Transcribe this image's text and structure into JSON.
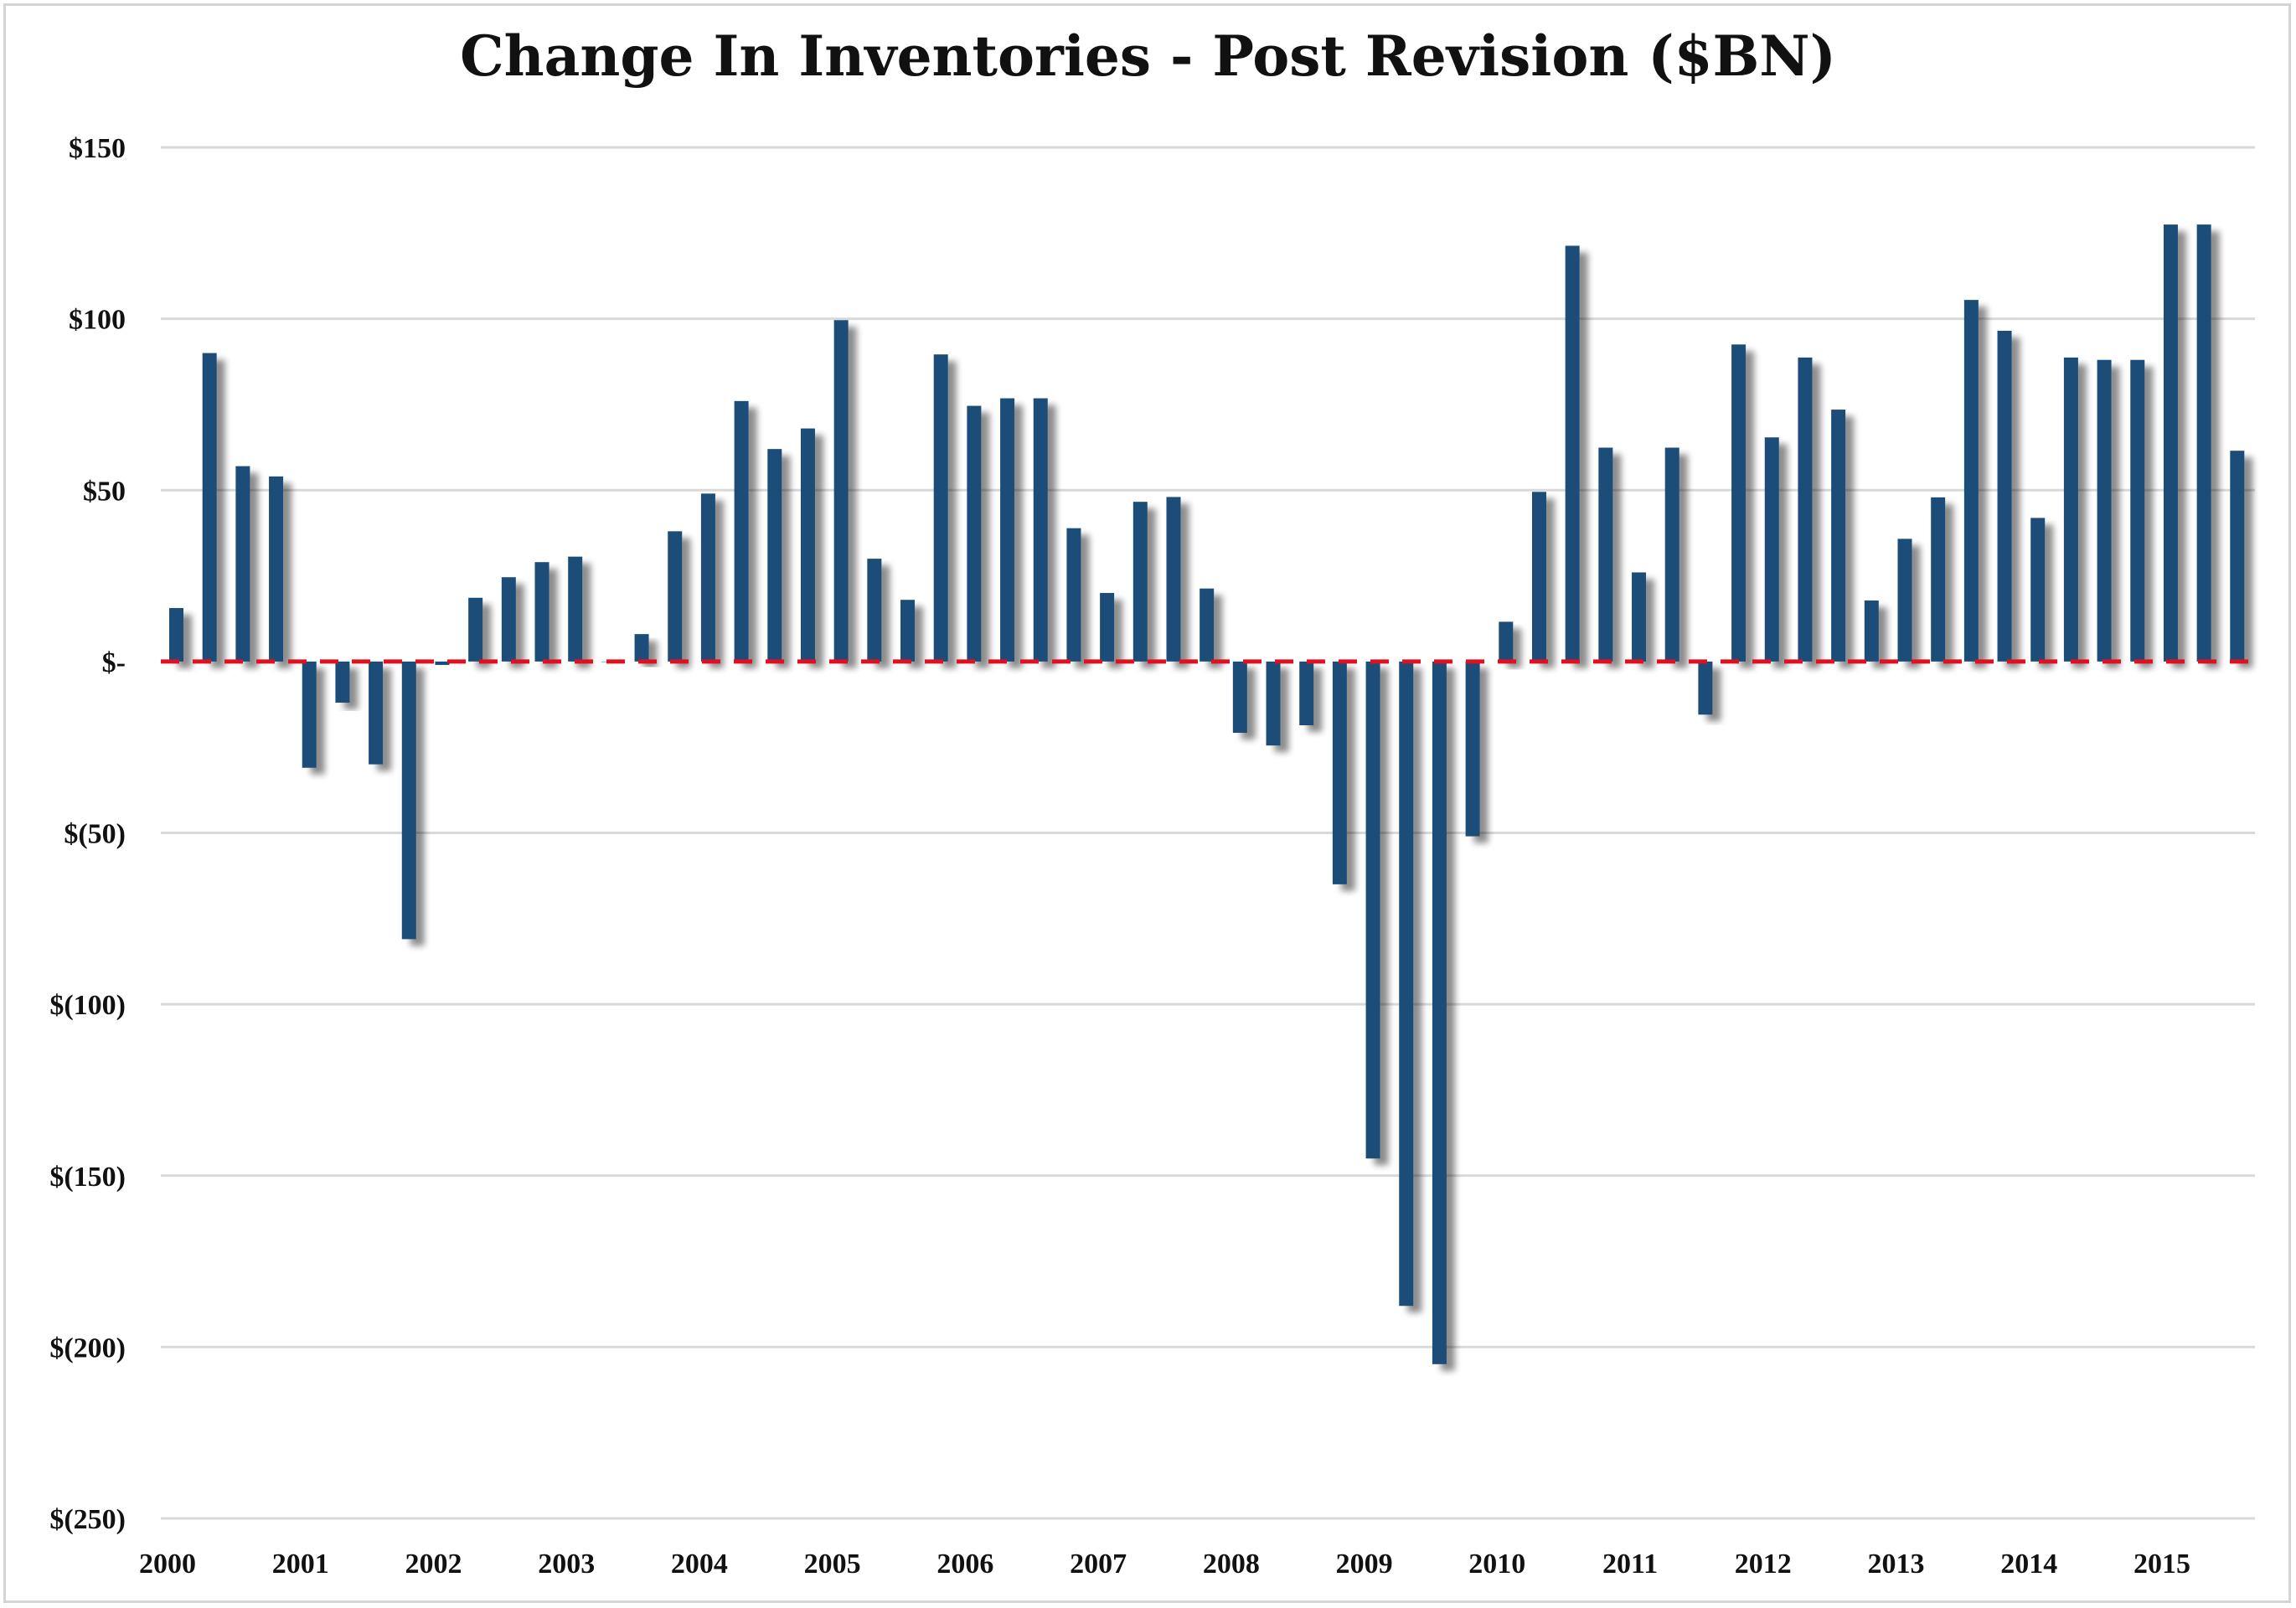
{
  "chart_data": {
    "type": "bar",
    "title": "Change In Inventories - Post Revision ($BN)",
    "xlabel": "",
    "ylabel": "",
    "ylim": [
      -250,
      150
    ],
    "grid": true,
    "legend": "none",
    "bar_color": "#1f4e79",
    "zero_line_color": "#e01020",
    "zero_line_style": "dashed",
    "y_ticks": [
      150,
      100,
      50,
      0,
      -50,
      -100,
      -150,
      -200,
      -250
    ],
    "y_tick_labels": [
      "$150",
      "$100",
      "$50",
      "$-",
      "$(50)",
      "$(100)",
      "$(150)",
      "$(200)",
      "$(250)"
    ],
    "x_tick_labels": [
      "2000",
      "2001",
      "2002",
      "2003",
      "2004",
      "2005",
      "2006",
      "2007",
      "2008",
      "2009",
      "2010",
      "2011",
      "2012",
      "2013",
      "2014",
      "2015"
    ],
    "categories": [
      "2000Q1",
      "2000Q2",
      "2000Q3",
      "2000Q4",
      "2001Q1",
      "2001Q2",
      "2001Q3",
      "2001Q4",
      "2002Q1",
      "2002Q2",
      "2002Q3",
      "2002Q4",
      "2003Q1",
      "2003Q2",
      "2003Q3",
      "2003Q4",
      "2004Q1",
      "2004Q2",
      "2004Q3",
      "2004Q4",
      "2005Q1",
      "2005Q2",
      "2005Q3",
      "2005Q4",
      "2006Q1",
      "2006Q2",
      "2006Q3",
      "2006Q4",
      "2007Q1",
      "2007Q2",
      "2007Q3",
      "2007Q4",
      "2008Q1",
      "2008Q2",
      "2008Q3",
      "2008Q4",
      "2009Q1",
      "2009Q2",
      "2009Q3",
      "2009Q4",
      "2010Q1",
      "2010Q2",
      "2010Q3",
      "2010Q4",
      "2011Q1",
      "2011Q2",
      "2011Q3",
      "2011Q4",
      "2012Q1",
      "2012Q2",
      "2012Q3",
      "2012Q4",
      "2013Q1",
      "2013Q2",
      "2013Q3",
      "2013Q4",
      "2014Q1",
      "2014Q2",
      "2014Q3",
      "2014Q4",
      "2015Q1",
      "2015Q2",
      "2015Q3"
    ],
    "values": [
      15.6,
      90,
      57,
      54,
      -31,
      -12,
      -30,
      -81,
      -1,
      18.6,
      24.6,
      29,
      30.6,
      0,
      8,
      38,
      49,
      76,
      62,
      68,
      99.6,
      30,
      18,
      89.6,
      74.6,
      76.8,
      76.8,
      38.9,
      20,
      46.6,
      48,
      21.3,
      -20.8,
      -24.5,
      -18.6,
      -65,
      -145,
      -188,
      -205,
      -51,
      11.6,
      49.5,
      121.3,
      62.4,
      26,
      62.4,
      -15.5,
      92.5,
      65.4,
      88.7,
      73.5,
      17.8,
      35.8,
      47.9,
      105.5,
      96.5,
      41.9,
      88.7,
      88,
      88,
      127.5,
      127.5,
      61.5
    ]
  }
}
